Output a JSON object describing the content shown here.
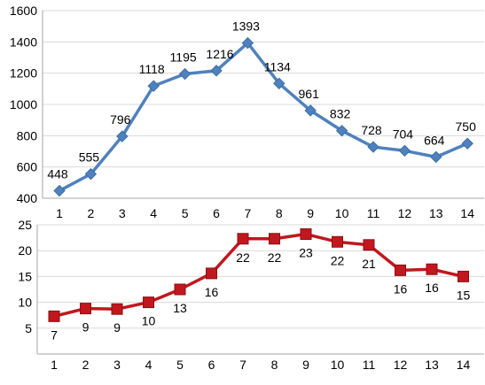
{
  "chart_data": [
    {
      "type": "line",
      "title": "",
      "xlabel": "",
      "ylabel": "",
      "x": [
        1,
        2,
        3,
        4,
        5,
        6,
        7,
        8,
        9,
        10,
        11,
        12,
        13,
        14
      ],
      "ylim": [
        400,
        1600
      ],
      "yticks": [
        400,
        600,
        800,
        1000,
        1200,
        1400,
        1600
      ],
      "grid": "horizontal",
      "legend": "none",
      "series": [
        {
          "values": [
            448,
            555,
            796,
            1118,
            1195,
            1216,
            1393,
            1134,
            961,
            832,
            728,
            704,
            664,
            750
          ],
          "labels": [
            "448",
            "555",
            "796",
            "1118",
            "1195",
            "1216",
            "1393",
            "1134",
            "961",
            "832",
            "728",
            "704",
            "664",
            "750"
          ],
          "color": "#4f81bd",
          "marker": "diamond"
        }
      ]
    },
    {
      "type": "line",
      "title": "",
      "xlabel": "",
      "ylabel": "",
      "x": [
        1,
        2,
        3,
        4,
        5,
        6,
        7,
        8,
        9,
        10,
        11,
        12,
        13,
        14
      ],
      "ylim": [
        0,
        25
      ],
      "yticks": [
        5,
        10,
        15,
        20,
        25
      ],
      "grid": "horizontal",
      "legend": "none",
      "series": [
        {
          "values": [
            7.3,
            8.8,
            8.7,
            10.0,
            12.5,
            15.6,
            22.3,
            22.3,
            23.2,
            21.7,
            21.1,
            16.2,
            16.4,
            15.0
          ],
          "labels": [
            "7",
            "9",
            "9",
            "10",
            "13",
            "16",
            "22",
            "22",
            "23",
            "22",
            "21",
            "16",
            "16",
            "15"
          ],
          "color": "#c0181e",
          "marker": "square"
        }
      ]
    }
  ]
}
